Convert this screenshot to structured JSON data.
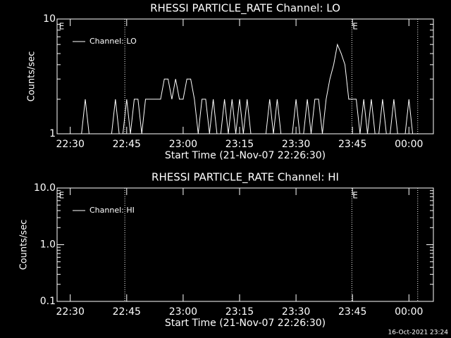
{
  "chart_data": [
    {
      "type": "line",
      "title": "RHESSI PARTICLE_RATE Channel: LO",
      "xlabel": "Start Time (21-Nov-07 22:26:30)",
      "ylabel": "Counts/sec",
      "log": true,
      "xlim": [
        "22:26:30",
        "00:06:30"
      ],
      "xticks": [
        "22:30",
        "22:45",
        "23:00",
        "23:15",
        "23:30",
        "23:45",
        "00:00"
      ],
      "ylim": [
        1,
        10
      ],
      "yticks": [
        1,
        10
      ],
      "vlines": [
        "22:44:30",
        "23:44:50",
        "00:02:20"
      ],
      "annotations": [
        {
          "text": "E",
          "x": "22:27"
        },
        {
          "text": "E",
          "x": "23:45"
        }
      ],
      "legend": "top-left",
      "x": [
        "22:27",
        "22:28",
        "22:29",
        "22:30",
        "22:31",
        "22:32",
        "22:33",
        "22:34",
        "22:35",
        "22:36",
        "22:37",
        "22:38",
        "22:39",
        "22:40",
        "22:41",
        "22:42",
        "22:43",
        "22:44",
        "22:45",
        "22:46",
        "22:47",
        "22:48",
        "22:49",
        "22:50",
        "22:51",
        "22:52",
        "22:53",
        "22:54",
        "22:55",
        "22:56",
        "22:57",
        "22:58",
        "22:59",
        "23:00",
        "23:01",
        "23:02",
        "23:03",
        "23:04",
        "23:05",
        "23:06",
        "23:07",
        "23:08",
        "23:09",
        "23:10",
        "23:11",
        "23:12",
        "23:13",
        "23:14",
        "23:15",
        "23:16",
        "23:17",
        "23:18",
        "23:19",
        "23:20",
        "23:21",
        "23:22",
        "23:23",
        "23:24",
        "23:25",
        "23:26",
        "23:27",
        "23:28",
        "23:29",
        "23:30",
        "23:31",
        "23:32",
        "23:33",
        "23:34",
        "23:35",
        "23:36",
        "23:37",
        "23:38",
        "23:39",
        "23:40",
        "23:41",
        "23:42",
        "23:43",
        "23:44",
        "23:45",
        "23:46",
        "23:47",
        "23:48",
        "23:49",
        "23:50",
        "23:51",
        "23:52",
        "23:53",
        "23:54",
        "23:55",
        "23:56",
        "23:57",
        "23:58",
        "23:59",
        "00:00",
        "00:01",
        "00:02",
        "00:03",
        "00:04",
        "00:05",
        "00:06"
      ],
      "series": [
        {
          "name": "Channel: LO",
          "color": "#ffffff",
          "values": [
            1,
            1,
            1,
            1,
            1,
            1,
            1,
            2,
            1,
            1,
            1,
            1,
            1,
            1,
            1,
            2,
            1,
            1,
            2,
            1,
            2,
            2,
            1,
            2,
            2,
            2,
            2,
            2,
            3,
            3,
            2,
            3,
            2,
            2,
            3,
            3,
            2,
            1,
            2,
            2,
            1,
            2,
            1,
            1,
            2,
            1,
            2,
            1,
            2,
            1,
            2,
            1,
            1,
            1,
            1,
            1,
            2,
            1,
            2,
            1,
            1,
            1,
            1,
            2,
            1,
            1,
            2,
            1,
            2,
            2,
            1,
            2,
            3,
            4,
            6,
            5,
            4,
            2,
            2,
            2,
            1,
            2,
            1,
            2,
            1,
            1,
            2,
            1,
            1,
            2,
            1,
            1,
            1,
            2,
            1,
            1,
            1,
            1,
            1,
            1
          ]
        }
      ]
    },
    {
      "type": "line",
      "title": "RHESSI PARTICLE_RATE Channel: HI",
      "xlabel": "Start Time (21-Nov-07 22:26:30)",
      "ylabel": "Counts/sec",
      "log": true,
      "xlim": [
        "22:26:30",
        "00:06:30"
      ],
      "xticks": [
        "22:30",
        "22:45",
        "23:00",
        "23:15",
        "23:30",
        "23:45",
        "00:00"
      ],
      "ylim": [
        0.1,
        10
      ],
      "yticks": [
        0.1,
        {
          "value": 1,
          "label": "1.0"
        },
        {
          "value": 10,
          "label": "10.0"
        }
      ],
      "vlines": [
        "22:44:30",
        "23:44:50",
        "00:02:20"
      ],
      "annotations": [
        {
          "text": "E",
          "x": "22:27"
        },
        {
          "text": "E",
          "x": "23:45"
        }
      ],
      "legend": "top-left",
      "x": [],
      "series": [
        {
          "name": "Channel: HI",
          "color": "#ffffff",
          "values": []
        }
      ]
    }
  ],
  "footer": "16-Oct-2021 23:24"
}
